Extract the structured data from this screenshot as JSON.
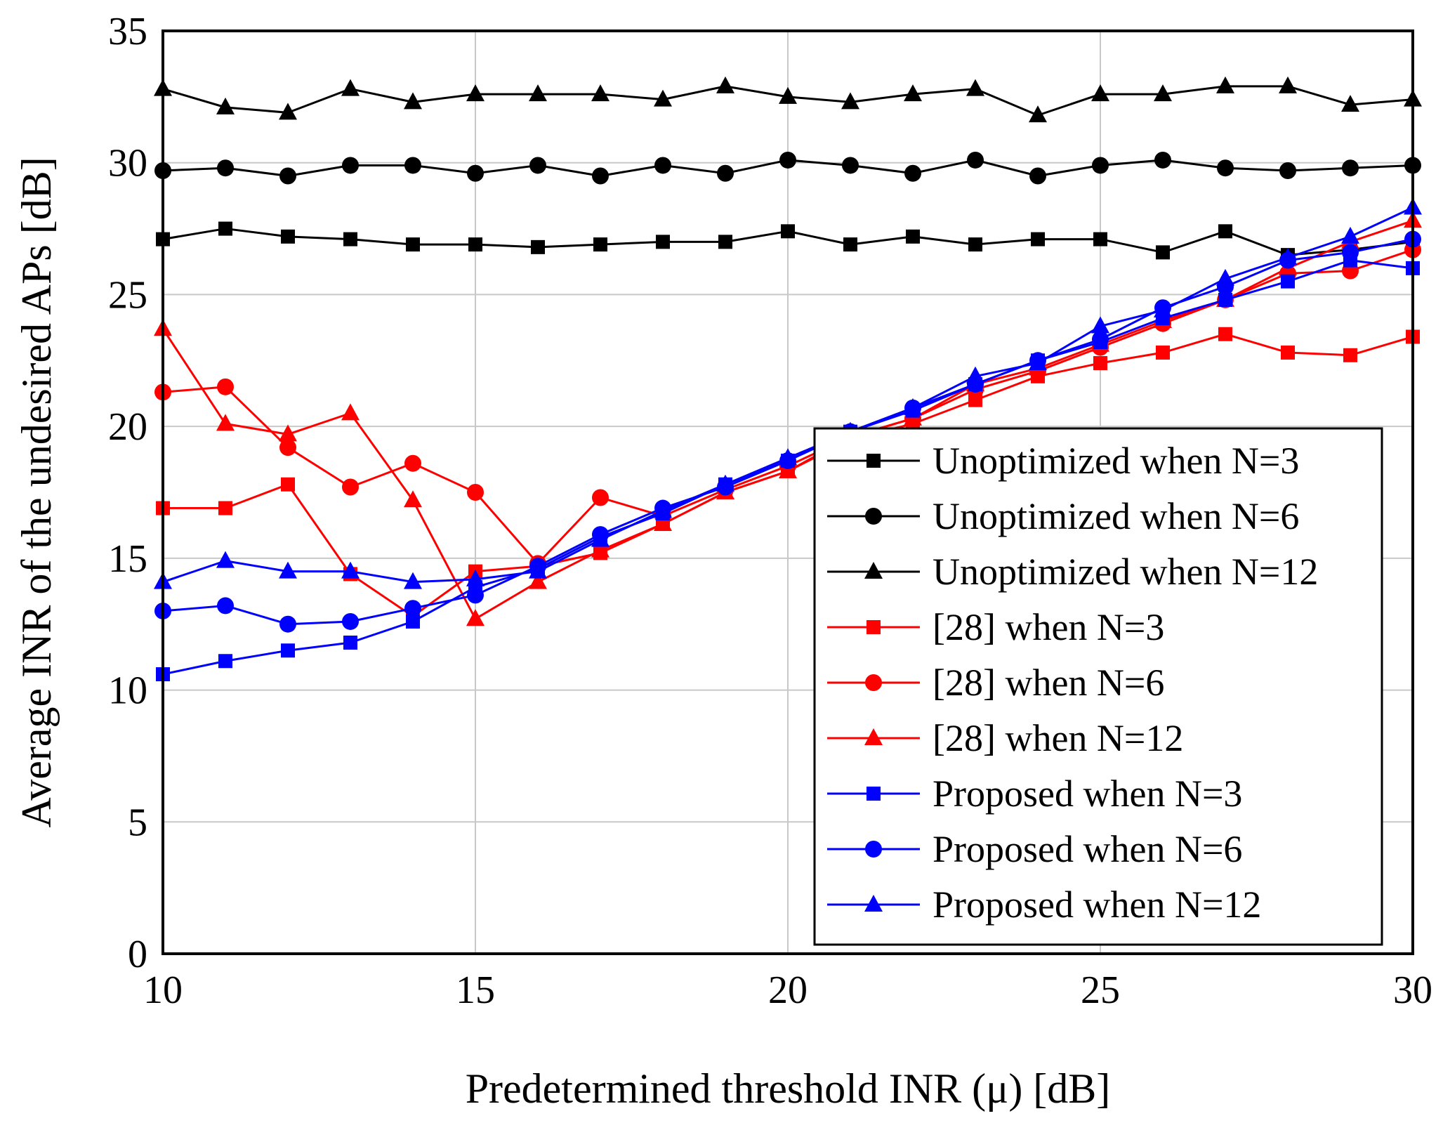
{
  "chart_data": {
    "type": "line",
    "title": "",
    "xlabel": "Predetermined threshold INR (μ) [dB]",
    "ylabel": "Average INR of the undesired APs [dB]",
    "xlim": [
      10,
      30
    ],
    "ylim": [
      0,
      35
    ],
    "xticks": [
      "10",
      "15",
      "20",
      "25",
      "30"
    ],
    "yticks": [
      "0",
      "5",
      "10",
      "15",
      "20",
      "25",
      "30",
      "35"
    ],
    "grid": true,
    "legend_position": "bottom-right",
    "x": [
      10,
      11,
      12,
      13,
      14,
      15,
      16,
      17,
      18,
      19,
      20,
      21,
      22,
      23,
      24,
      25,
      26,
      27,
      28,
      29,
      30
    ],
    "series": [
      {
        "name": "Unoptimized when N=3",
        "color": "#000000",
        "marker": "square",
        "values": [
          27.1,
          27.5,
          27.2,
          27.1,
          26.9,
          26.9,
          26.8,
          26.9,
          27.0,
          27.0,
          27.4,
          26.9,
          27.2,
          26.9,
          27.1,
          27.1,
          26.6,
          27.4,
          26.5,
          26.7,
          27.0
        ]
      },
      {
        "name": "Unoptimized when N=6",
        "color": "#000000",
        "marker": "circle",
        "values": [
          29.7,
          29.8,
          29.5,
          29.9,
          29.9,
          29.6,
          29.9,
          29.5,
          29.9,
          29.6,
          30.1,
          29.9,
          29.6,
          30.1,
          29.5,
          29.9,
          30.1,
          29.8,
          29.7,
          29.8,
          29.9
        ]
      },
      {
        "name": "Unoptimized when N=12",
        "color": "#000000",
        "marker": "triangle",
        "values": [
          32.8,
          32.1,
          31.9,
          32.8,
          32.3,
          32.6,
          32.6,
          32.6,
          32.4,
          32.9,
          32.5,
          32.3,
          32.6,
          32.8,
          31.8,
          32.6,
          32.6,
          32.9,
          32.9,
          32.2,
          32.4
        ]
      },
      {
        "name": "[28] when N=3",
        "color": "#ff0000",
        "marker": "square",
        "values": [
          16.9,
          16.9,
          17.8,
          14.4,
          12.8,
          14.5,
          14.7,
          15.2,
          16.3,
          17.5,
          18.3,
          19.5,
          20.1,
          21.0,
          21.9,
          22.4,
          22.8,
          23.5,
          22.8,
          22.7,
          23.4
        ]
      },
      {
        "name": "[28] when N=6",
        "color": "#ff0000",
        "marker": "circle",
        "values": [
          21.3,
          21.5,
          19.2,
          17.7,
          18.6,
          17.5,
          14.8,
          17.3,
          16.6,
          17.6,
          18.5,
          19.6,
          20.3,
          21.4,
          22.1,
          23.0,
          23.9,
          24.8,
          25.8,
          25.9,
          26.7
        ]
      },
      {
        "name": "[28] when N=12",
        "color": "#ff0000",
        "marker": "triangle",
        "values": [
          23.7,
          20.1,
          19.7,
          20.5,
          17.2,
          12.7,
          14.1,
          15.3,
          16.3,
          17.5,
          18.3,
          19.6,
          20.3,
          21.6,
          22.2,
          23.1,
          24.0,
          24.8,
          26.0,
          27.0,
          27.8
        ]
      },
      {
        "name": "Proposed when N=3",
        "color": "#0000ff",
        "marker": "square",
        "values": [
          10.6,
          11.1,
          11.5,
          11.8,
          12.6,
          13.9,
          14.6,
          15.8,
          16.7,
          17.8,
          18.7,
          19.8,
          20.6,
          21.6,
          22.5,
          23.2,
          24.1,
          24.8,
          25.5,
          26.3,
          26.0
        ]
      },
      {
        "name": "Proposed when N=6",
        "color": "#0000ff",
        "marker": "circle",
        "values": [
          13.0,
          13.2,
          12.5,
          12.6,
          13.1,
          13.6,
          14.7,
          15.9,
          16.9,
          17.7,
          18.7,
          19.8,
          20.7,
          21.6,
          22.5,
          23.3,
          24.5,
          25.3,
          26.3,
          26.6,
          27.1
        ]
      },
      {
        "name": "Proposed when N=12",
        "color": "#0000ff",
        "marker": "triangle",
        "values": [
          14.1,
          14.9,
          14.5,
          14.5,
          14.1,
          14.2,
          14.5,
          15.7,
          16.8,
          17.8,
          18.8,
          19.8,
          20.7,
          21.9,
          22.4,
          23.8,
          24.4,
          25.6,
          26.4,
          27.2,
          28.3
        ]
      }
    ]
  }
}
